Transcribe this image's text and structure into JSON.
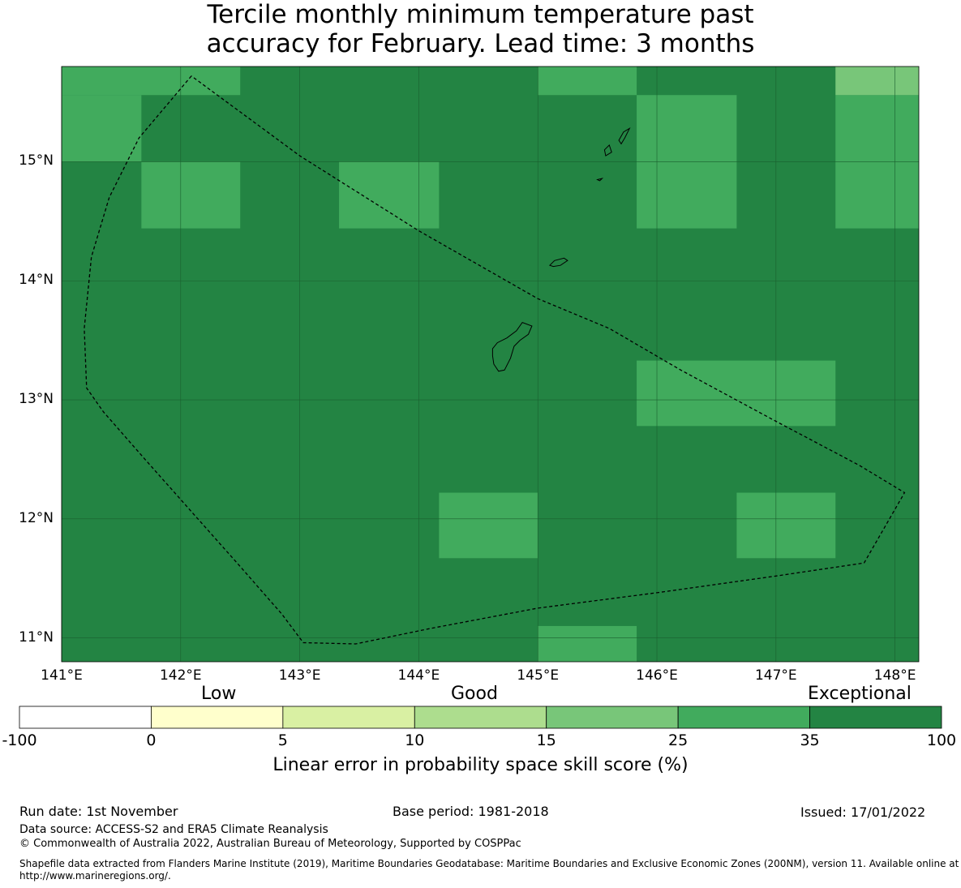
{
  "title": {
    "line1": "Tercile monthly minimum temperature past",
    "line2": "accuracy for February. Lead time: 3 months"
  },
  "map": {
    "lon_range": [
      141.0,
      148.2
    ],
    "lat_range": [
      10.8,
      15.8
    ],
    "lon_ticks": [
      {
        "value": 141,
        "label": "141°E"
      },
      {
        "value": 142,
        "label": "142°E"
      },
      {
        "value": 143,
        "label": "143°E"
      },
      {
        "value": 144,
        "label": "144°E"
      },
      {
        "value": 145,
        "label": "145°E"
      },
      {
        "value": 146,
        "label": "146°E"
      },
      {
        "value": 147,
        "label": "147°E"
      },
      {
        "value": 148,
        "label": "148°E"
      }
    ],
    "lat_ticks": [
      {
        "value": 15,
        "label": "15°N"
      },
      {
        "value": 14,
        "label": "14°N"
      },
      {
        "value": 13,
        "label": "13°N"
      },
      {
        "value": 12,
        "label": "12°N"
      },
      {
        "value": 11,
        "label": "11°N"
      }
    ],
    "background_color": "#238443",
    "cells": [
      {
        "lon0": 141.0,
        "lon1": 141.67,
        "lat0": 15.0,
        "lat1": 15.56,
        "color": "#41ab5d"
      },
      {
        "lon0": 141.0,
        "lon1": 142.5,
        "lat0": 15.56,
        "lat1": 15.8,
        "color": "#41ab5d"
      },
      {
        "lon0": 141.67,
        "lon1": 142.5,
        "lat0": 14.44,
        "lat1": 15.0,
        "color": "#41ab5d"
      },
      {
        "lon0": 143.33,
        "lon1": 144.17,
        "lat0": 14.44,
        "lat1": 15.0,
        "color": "#41ab5d"
      },
      {
        "lon0": 145.0,
        "lon1": 145.83,
        "lat0": 15.56,
        "lat1": 15.8,
        "color": "#41ab5d"
      },
      {
        "lon0": 145.83,
        "lon1": 146.67,
        "lat0": 14.44,
        "lat1": 15.56,
        "color": "#41ab5d"
      },
      {
        "lon0": 147.5,
        "lon1": 148.2,
        "lat0": 14.44,
        "lat1": 15.56,
        "color": "#41ab5d"
      },
      {
        "lon0": 147.5,
        "lon1": 148.2,
        "lat0": 15.56,
        "lat1": 15.8,
        "color": "#78c679"
      },
      {
        "lon0": 145.83,
        "lon1": 147.5,
        "lat0": 12.78,
        "lat1": 13.33,
        "color": "#41ab5d"
      },
      {
        "lon0": 144.17,
        "lon1": 145.0,
        "lat0": 11.67,
        "lat1": 12.22,
        "color": "#41ab5d"
      },
      {
        "lon0": 146.67,
        "lon1": 147.5,
        "lat0": 11.67,
        "lat1": 12.22,
        "color": "#41ab5d"
      },
      {
        "lon0": 145.0,
        "lon1": 145.83,
        "lat0": 10.8,
        "lat1": 11.1,
        "color": "#41ab5d"
      }
    ],
    "eez_boundary": [
      [
        142.09,
        15.72
      ],
      [
        141.65,
        15.2
      ],
      [
        141.4,
        14.7
      ],
      [
        141.25,
        14.2
      ],
      [
        141.19,
        13.6
      ],
      [
        141.21,
        13.1
      ],
      [
        141.35,
        12.9
      ],
      [
        141.7,
        12.5
      ],
      [
        142.1,
        12.05
      ],
      [
        142.5,
        11.6
      ],
      [
        142.85,
        11.2
      ],
      [
        143.03,
        10.96
      ],
      [
        143.47,
        10.95
      ],
      [
        144.1,
        11.08
      ],
      [
        145.0,
        11.25
      ],
      [
        146.0,
        11.38
      ],
      [
        147.0,
        11.52
      ],
      [
        147.74,
        11.63
      ],
      [
        148.08,
        12.22
      ],
      [
        147.7,
        12.45
      ],
      [
        147.0,
        12.82
      ],
      [
        146.2,
        13.25
      ],
      [
        145.6,
        13.6
      ],
      [
        145.0,
        13.85
      ],
      [
        144.0,
        14.42
      ],
      [
        143.0,
        15.05
      ],
      [
        142.09,
        15.72
      ]
    ],
    "islands": [
      [
        [
          144.62,
          13.43
        ],
        [
          144.66,
          13.48
        ],
        [
          144.74,
          13.52
        ],
        [
          144.82,
          13.58
        ],
        [
          144.87,
          13.65
        ],
        [
          144.95,
          13.62
        ],
        [
          144.92,
          13.55
        ],
        [
          144.85,
          13.5
        ],
        [
          144.8,
          13.45
        ],
        [
          144.77,
          13.35
        ],
        [
          144.72,
          13.25
        ],
        [
          144.67,
          13.24
        ],
        [
          144.63,
          13.3
        ],
        [
          144.62,
          13.37
        ]
      ],
      [
        [
          145.1,
          14.13
        ],
        [
          145.14,
          14.17
        ],
        [
          145.22,
          14.19
        ],
        [
          145.25,
          14.17
        ],
        [
          145.19,
          14.13
        ],
        [
          145.13,
          14.12
        ]
      ],
      [
        [
          145.57,
          15.05
        ],
        [
          145.62,
          15.08
        ],
        [
          145.6,
          15.14
        ],
        [
          145.56,
          15.1
        ]
      ],
      [
        [
          145.68,
          15.18
        ],
        [
          145.72,
          15.25
        ],
        [
          145.77,
          15.28
        ],
        [
          145.73,
          15.2
        ],
        [
          145.7,
          15.15
        ]
      ],
      [
        [
          145.5,
          14.85
        ],
        [
          145.54,
          14.86
        ],
        [
          145.52,
          14.84
        ]
      ]
    ]
  },
  "colorbar": {
    "categories": [
      "Low",
      "Good",
      "Exceptional"
    ],
    "bins": [
      {
        "from": -100,
        "to": 0,
        "color": "#ffffff"
      },
      {
        "from": 0,
        "to": 5,
        "color": "#ffffcc"
      },
      {
        "from": 5,
        "to": 10,
        "color": "#d9f0a3"
      },
      {
        "from": 10,
        "to": 15,
        "color": "#addd8e"
      },
      {
        "from": 15,
        "to": 25,
        "color": "#78c679"
      },
      {
        "from": 25,
        "to": 35,
        "color": "#41ab5d"
      },
      {
        "from": 35,
        "to": 100,
        "color": "#238443"
      }
    ],
    "tick_labels": [
      "-100",
      "0",
      "5",
      "10",
      "15",
      "25",
      "35",
      "100"
    ],
    "label": "Linear error in probability space skill score (%)"
  },
  "footer": {
    "run_date": "Run date: 1st November",
    "base_period": "Base period: 1981-2018",
    "issued": "Issued: 17/01/2022",
    "data_source": "Data source: ACCESS-S2 and ERA5 Climate Reanalysis",
    "copyright": "© Commonwealth of Australia 2022, Australian Bureau of Meteorology, Supported by COSPPac",
    "shapefile": "Shapefile data extracted from Flanders Marine Institute (2019), Maritime Boundaries Geodatabase: Maritime Boundaries and Exclusive Economic Zones (200NM), version 11. Available online at http://www.marineregions.org/."
  }
}
